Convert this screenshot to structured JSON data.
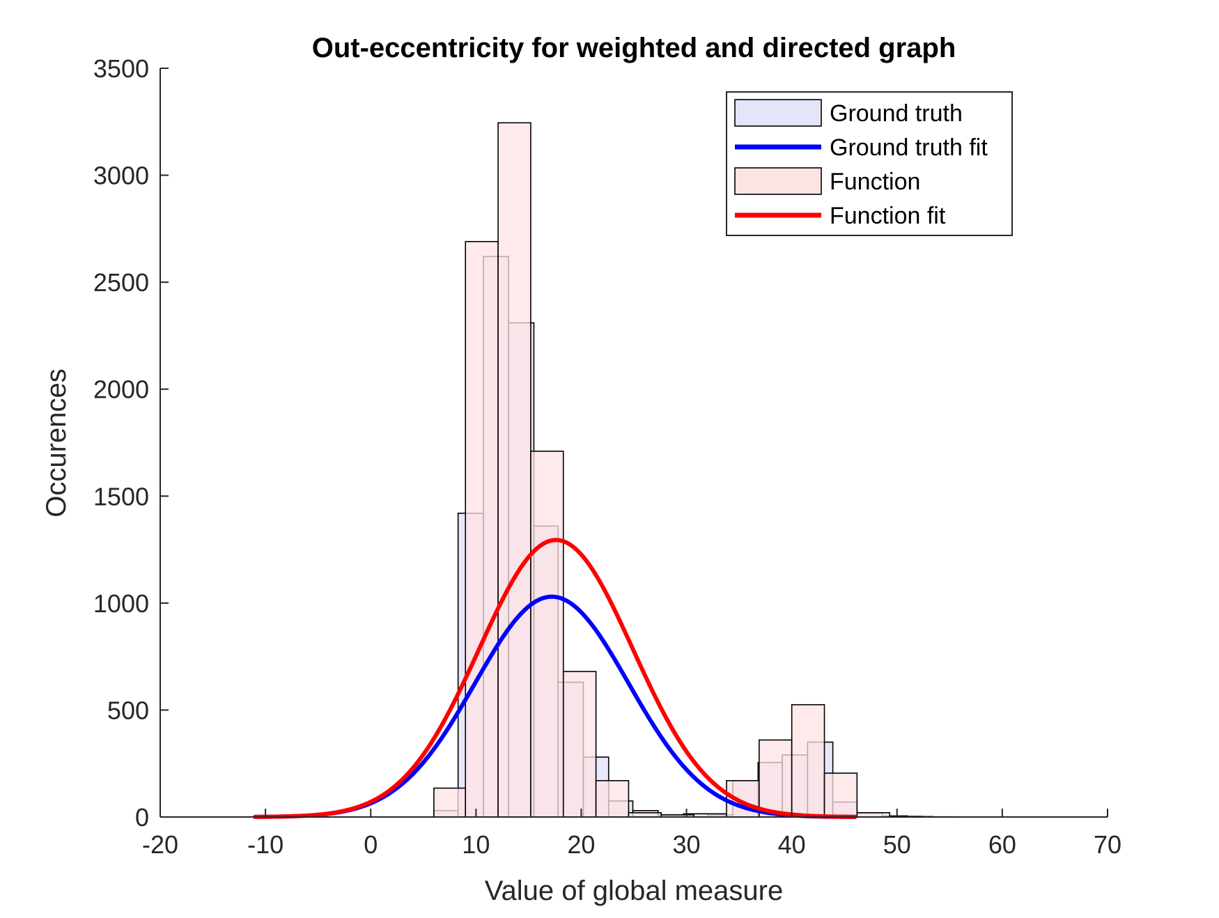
{
  "chart_data": {
    "type": "bar",
    "title": "Out-eccentricity for weighted and directed graph",
    "xlabel": "Value of global measure",
    "ylabel": "Occurences",
    "xlim": [
      -20,
      70
    ],
    "ylim": [
      0,
      3500
    ],
    "xticks": [
      "-20",
      "-10",
      "0",
      "10",
      "20",
      "30",
      "40",
      "50",
      "60",
      "70"
    ],
    "yticks": [
      "0",
      "500",
      "1000",
      "1500",
      "2000",
      "2500",
      "3000",
      "3500"
    ],
    "grid": false,
    "legend_position": "top-right",
    "colors": {
      "ground_truth_face": "#e4e4fb",
      "function_face": "#fde3e3",
      "ground_truth_fit": "#0000ff",
      "function_fit": "#ff0000",
      "bar_edge": "#000000"
    },
    "series": [
      {
        "name": "Ground truth",
        "kind": "histogram",
        "bins": [
          {
            "x0": 6.0,
            "x1": 8.3,
            "value": 30
          },
          {
            "x0": 8.3,
            "x1": 10.7,
            "value": 1420
          },
          {
            "x0": 10.7,
            "x1": 13.1,
            "value": 2620
          },
          {
            "x0": 13.1,
            "x1": 15.5,
            "value": 2310
          },
          {
            "x0": 15.5,
            "x1": 17.8,
            "value": 1360
          },
          {
            "x0": 17.8,
            "x1": 20.2,
            "value": 630
          },
          {
            "x0": 20.2,
            "x1": 22.6,
            "value": 280
          },
          {
            "x0": 22.6,
            "x1": 24.9,
            "value": 75
          },
          {
            "x0": 24.9,
            "x1": 27.3,
            "value": 30
          },
          {
            "x0": 27.3,
            "x1": 29.7,
            "value": 10
          },
          {
            "x0": 29.7,
            "x1": 32.0,
            "value": 15
          },
          {
            "x0": 32.0,
            "x1": 34.4,
            "value": 10
          },
          {
            "x0": 34.4,
            "x1": 36.8,
            "value": 170
          },
          {
            "x0": 36.8,
            "x1": 39.1,
            "value": 255
          },
          {
            "x0": 39.1,
            "x1": 41.5,
            "value": 290
          },
          {
            "x0": 41.5,
            "x1": 43.9,
            "value": 350
          },
          {
            "x0": 43.9,
            "x1": 46.2,
            "value": 70
          },
          {
            "x0": 46.2,
            "x1": 48.6,
            "value": 20
          },
          {
            "x0": 48.6,
            "x1": 51.0,
            "value": 5
          },
          {
            "x0": 51.0,
            "x1": 53.4,
            "value": 2
          }
        ]
      },
      {
        "name": "Ground truth fit",
        "kind": "curve",
        "gaussian": {
          "amplitude": 1030,
          "mean": 17.2,
          "sigma": 7.3
        },
        "x_range": [
          -10.5,
          46.0
        ]
      },
      {
        "name": "Function",
        "kind": "histogram",
        "bins": [
          {
            "x0": 6.0,
            "x1": 9.0,
            "value": 135
          },
          {
            "x0": 9.0,
            "x1": 12.1,
            "value": 2690
          },
          {
            "x0": 12.1,
            "x1": 15.2,
            "value": 3245
          },
          {
            "x0": 15.2,
            "x1": 18.3,
            "value": 1710
          },
          {
            "x0": 18.3,
            "x1": 21.4,
            "value": 680
          },
          {
            "x0": 21.4,
            "x1": 24.5,
            "value": 170
          },
          {
            "x0": 24.5,
            "x1": 27.6,
            "value": 20
          },
          {
            "x0": 27.6,
            "x1": 30.7,
            "value": 10
          },
          {
            "x0": 30.7,
            "x1": 33.8,
            "value": 15
          },
          {
            "x0": 33.8,
            "x1": 36.9,
            "value": 170
          },
          {
            "x0": 36.9,
            "x1": 40.0,
            "value": 360
          },
          {
            "x0": 40.0,
            "x1": 43.1,
            "value": 525
          },
          {
            "x0": 43.1,
            "x1": 46.2,
            "value": 205
          },
          {
            "x0": 46.2,
            "x1": 49.3,
            "value": 20
          },
          {
            "x0": 49.3,
            "x1": 52.4,
            "value": 3
          },
          {
            "x0": 52.4,
            "x1": 55.5,
            "value": 1
          }
        ]
      },
      {
        "name": "Function fit",
        "kind": "curve",
        "gaussian": {
          "amplitude": 1295,
          "mean": 17.6,
          "sigma": 7.3
        },
        "x_range": [
          -11.0,
          46.0
        ]
      }
    ]
  }
}
